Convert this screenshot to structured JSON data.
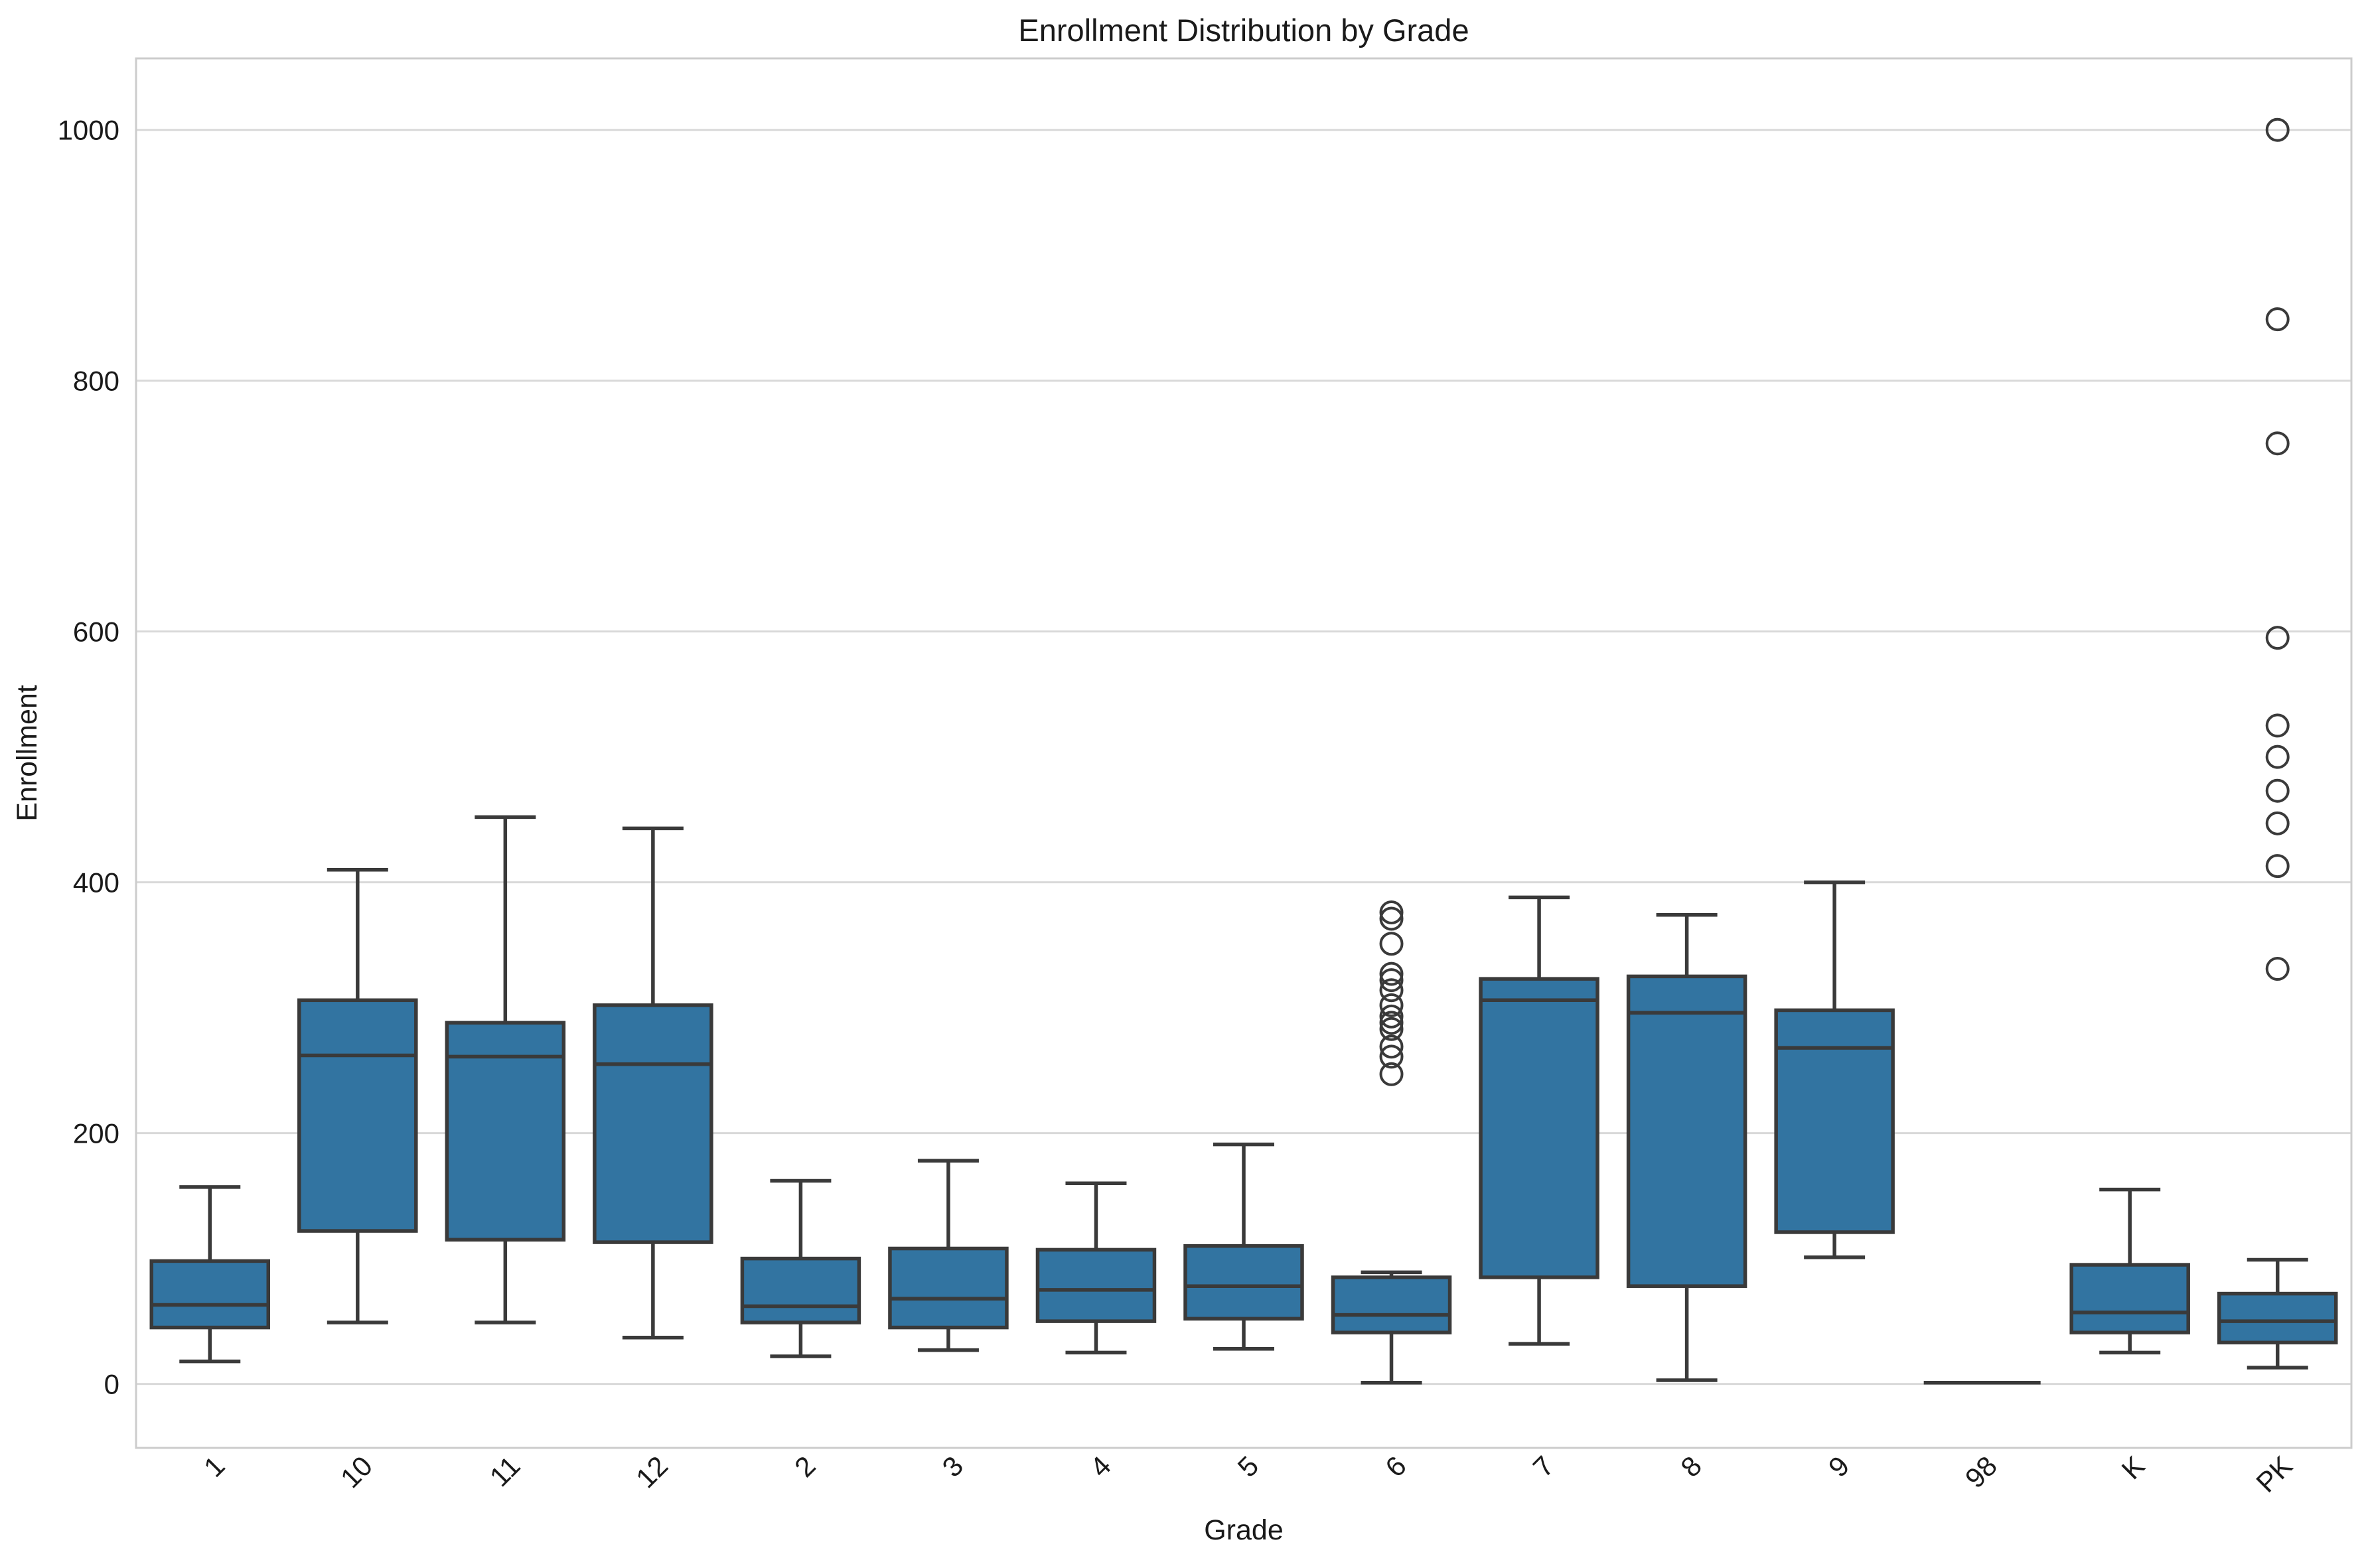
{
  "chart_data": {
    "type": "box",
    "title": "Enrollment Distribution by Grade",
    "xlabel": "Grade",
    "ylabel": "Enrollment",
    "categories": [
      "1",
      "10",
      "11",
      "12",
      "2",
      "3",
      "4",
      "5",
      "6",
      "7",
      "8",
      "9",
      "98",
      "K",
      "PK"
    ],
    "yticks": [
      0,
      200,
      400,
      600,
      800,
      1000
    ],
    "ylim": [
      -51,
      1057
    ],
    "grid": "horizontal-only",
    "legend": "none",
    "colors": {
      "box_fill": "#3274a1",
      "line": "#3a3a3a",
      "grid": "#d9d9d9",
      "spine": "#cccccc",
      "text": "#1a1a1a",
      "background": "#ffffff"
    },
    "series": [
      {
        "grade": "1",
        "whislo": 18,
        "q1": 45,
        "med": 63,
        "q3": 98,
        "whishi": 157,
        "fliers": []
      },
      {
        "grade": "10",
        "whislo": 49,
        "q1": 122,
        "med": 262,
        "q3": 306,
        "whishi": 410,
        "fliers": []
      },
      {
        "grade": "11",
        "whislo": 49,
        "q1": 115,
        "med": 261,
        "q3": 288,
        "whishi": 452,
        "fliers": []
      },
      {
        "grade": "12",
        "whislo": 37,
        "q1": 113,
        "med": 255,
        "q3": 302,
        "whishi": 443,
        "fliers": []
      },
      {
        "grade": "2",
        "whislo": 22,
        "q1": 49,
        "med": 62,
        "q3": 100,
        "whishi": 162,
        "fliers": []
      },
      {
        "grade": "3",
        "whislo": 27,
        "q1": 45,
        "med": 68,
        "q3": 108,
        "whishi": 178,
        "fliers": []
      },
      {
        "grade": "4",
        "whislo": 25,
        "q1": 50,
        "med": 75,
        "q3": 107,
        "whishi": 160,
        "fliers": []
      },
      {
        "grade": "5",
        "whislo": 28,
        "q1": 52,
        "med": 78,
        "q3": 110,
        "whishi": 191,
        "fliers": []
      },
      {
        "grade": "6",
        "whislo": 1,
        "q1": 41,
        "med": 55,
        "q3": 85,
        "whishi": 89,
        "fliers": [
          376,
          371,
          351,
          327,
          322,
          314,
          302,
          293,
          288,
          283,
          269,
          261,
          247
        ]
      },
      {
        "grade": "7",
        "whislo": 32,
        "q1": 85,
        "med": 306,
        "q3": 323,
        "whishi": 388,
        "fliers": []
      },
      {
        "grade": "8",
        "whislo": 3,
        "q1": 78,
        "med": 296,
        "q3": 325,
        "whishi": 374,
        "fliers": []
      },
      {
        "grade": "9",
        "whislo": 101,
        "q1": 121,
        "med": 268,
        "q3": 298,
        "whishi": 400,
        "fliers": []
      },
      {
        "grade": "98",
        "whislo": 1,
        "q1": 1,
        "med": 1,
        "q3": 1,
        "whishi": 1,
        "fliers": []
      },
      {
        "grade": "K",
        "whislo": 25,
        "q1": 41,
        "med": 57,
        "q3": 95,
        "whishi": 155,
        "fliers": []
      },
      {
        "grade": "PK",
        "whislo": 13,
        "q1": 33,
        "med": 50,
        "q3": 72,
        "whishi": 99,
        "fliers": [
          1000,
          849,
          750,
          595,
          525,
          500,
          473,
          447,
          413,
          331
        ]
      }
    ]
  }
}
